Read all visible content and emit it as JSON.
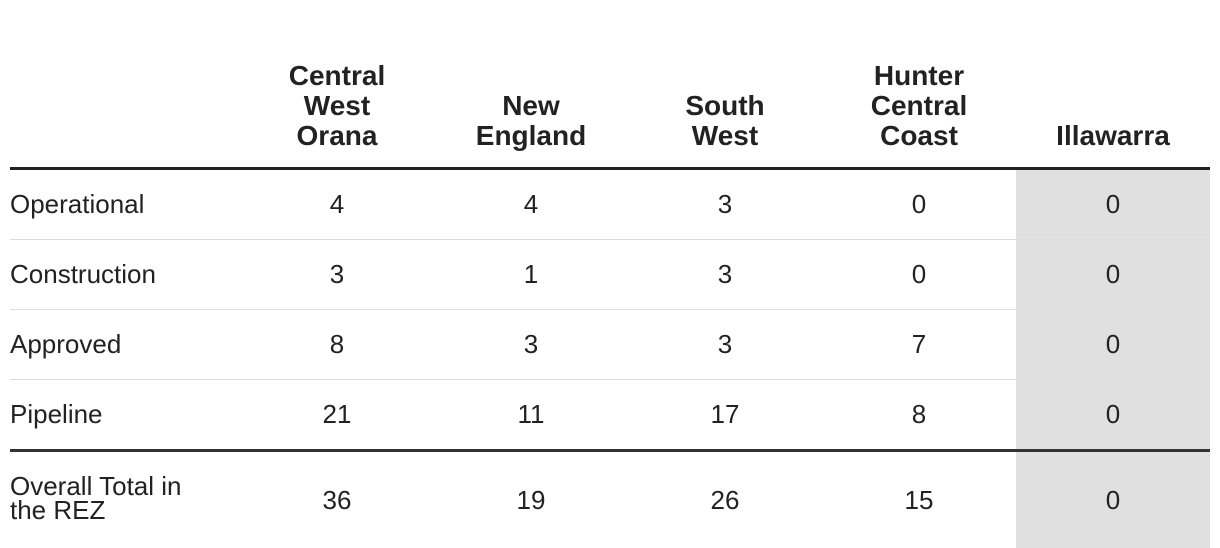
{
  "table": {
    "columns": [
      "Central West Orana",
      "New England",
      "South West",
      "Hunter Central Coast",
      "Illawarra"
    ],
    "rows": [
      {
        "label": "Operational",
        "values": [
          4,
          4,
          3,
          0,
          0
        ]
      },
      {
        "label": "Construction",
        "values": [
          3,
          1,
          3,
          0,
          0
        ]
      },
      {
        "label": "Approved",
        "values": [
          8,
          3,
          3,
          7,
          0
        ]
      },
      {
        "label": "Pipeline",
        "values": [
          21,
          11,
          17,
          8,
          0
        ]
      }
    ],
    "total": {
      "label": "Overall Total in the REZ",
      "values": [
        36,
        19,
        26,
        15,
        0
      ]
    }
  }
}
